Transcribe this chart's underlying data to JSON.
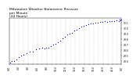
{
  "title": "Milwaukee Weather Barometric Pressure\nper Minute\n(24 Hours)",
  "title_fontsize": 3.2,
  "background_color": "#ffffff",
  "dot_color": "#0000dd",
  "dot_size": 0.8,
  "ylim": [
    29.35,
    30.18
  ],
  "xlim": [
    0,
    1440
  ],
  "yticks": [
    29.4,
    29.5,
    29.6,
    29.7,
    29.8,
    29.9,
    30.0,
    30.1
  ],
  "ytick_labels": [
    "29.4",
    "29.5",
    "29.6",
    "29.7",
    "29.8",
    "29.9",
    "30.0",
    "30.1"
  ],
  "xtick_positions": [
    0,
    60,
    120,
    180,
    240,
    300,
    360,
    420,
    480,
    540,
    600,
    660,
    720,
    780,
    840,
    900,
    960,
    1020,
    1080,
    1140,
    1200,
    1260,
    1320,
    1380,
    1440
  ],
  "xtick_labels": [
    "0:0",
    "",
    "2:0",
    "",
    "4:0",
    "",
    "6:0",
    "",
    "8:0",
    "",
    "10:0",
    "",
    "12:0",
    "",
    "14:0",
    "",
    "16:0",
    "",
    "18:0",
    "",
    "20:0",
    "",
    "22:0",
    "",
    "0:0"
  ],
  "grid_color": "#999999",
  "tick_fontsize": 2.2,
  "data_x": [
    10,
    30,
    60,
    90,
    120,
    150,
    180,
    220,
    260,
    300,
    340,
    380,
    420,
    450,
    470,
    500,
    530,
    560,
    590,
    620,
    650,
    680,
    710,
    740,
    770,
    800,
    830,
    860,
    890,
    920,
    950,
    980,
    1010,
    1040,
    1070,
    1100,
    1130,
    1160,
    1190,
    1220,
    1250,
    1280,
    1310,
    1340,
    1370,
    1400,
    1420,
    1430,
    1440
  ],
  "data_y": [
    29.38,
    29.4,
    29.41,
    29.43,
    29.48,
    29.5,
    29.52,
    29.55,
    29.57,
    29.58,
    29.62,
    29.63,
    29.65,
    29.63,
    29.65,
    29.64,
    29.68,
    29.7,
    29.72,
    29.75,
    29.78,
    29.82,
    29.85,
    29.88,
    29.9,
    29.92,
    29.95,
    29.97,
    30.0,
    30.02,
    30.04,
    30.06,
    30.07,
    30.08,
    30.09,
    30.1,
    30.1,
    30.11,
    30.11,
    30.12,
    30.11,
    30.12,
    30.13,
    30.12,
    30.14,
    30.13,
    30.15,
    30.14,
    30.16
  ]
}
